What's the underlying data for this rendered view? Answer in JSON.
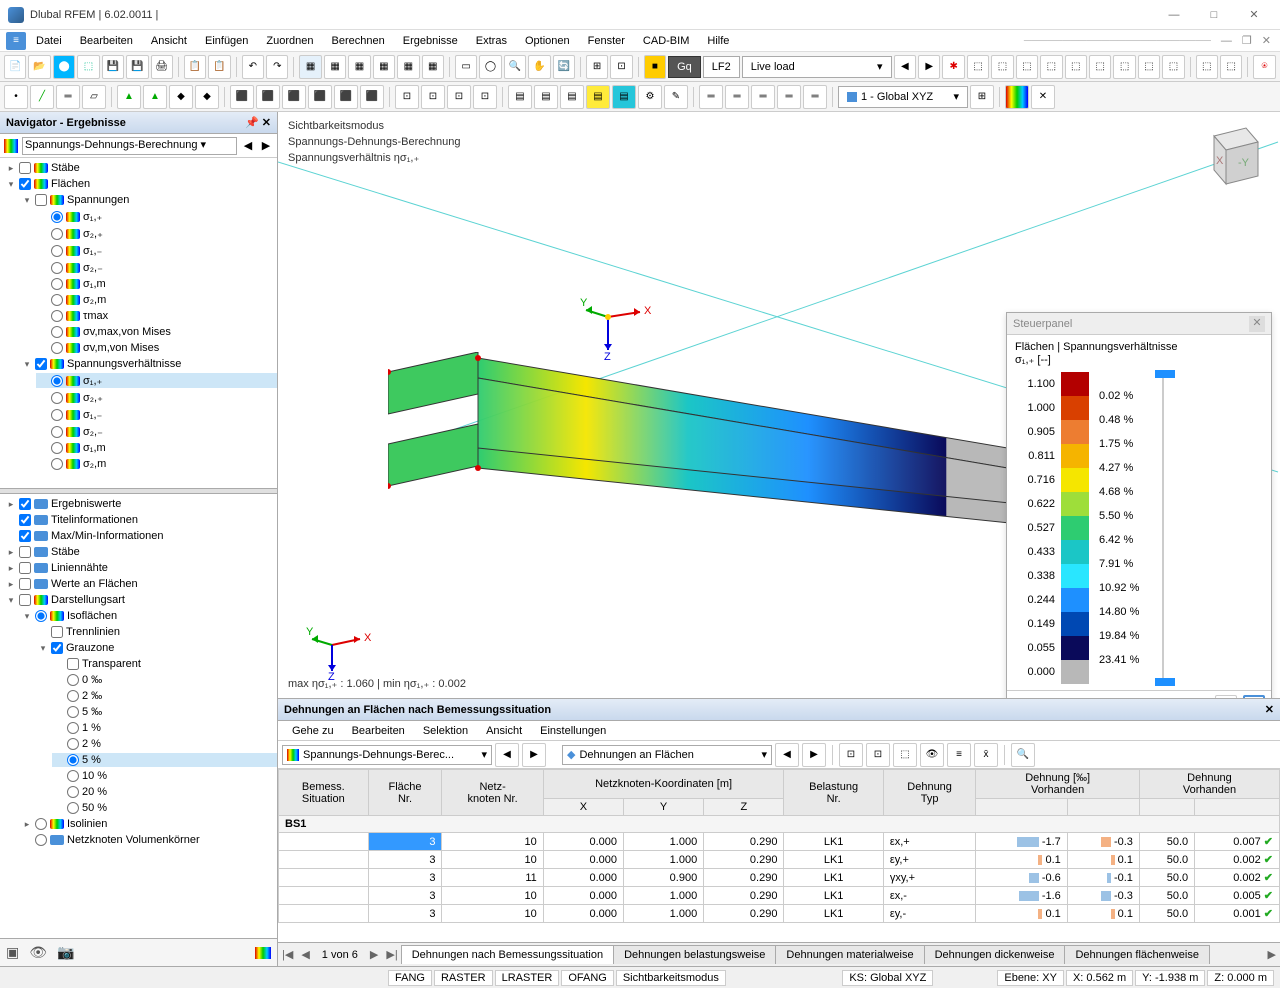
{
  "title": "Dlubal RFEM | 6.02.0011 |",
  "menu": [
    "Datei",
    "Bearbeiten",
    "Ansicht",
    "Einfügen",
    "Zuordnen",
    "Berechnen",
    "Ergebnisse",
    "Extras",
    "Optionen",
    "Fenster",
    "CAD-BIM",
    "Hilfe"
  ],
  "toolbar2_loadcase": {
    "badge": "Gq",
    "code": "LF2",
    "name": "Live load"
  },
  "toolbar2_coord": "1 - Global XYZ",
  "navigator": {
    "title": "Navigator - Ergebnisse",
    "combo": "Spannungs-Dehnungs-Berechnung",
    "tree1": [
      {
        "lvl": 0,
        "exp": ">",
        "chk": false,
        "icon": "grad",
        "label": "Stäbe"
      },
      {
        "lvl": 0,
        "exp": "v",
        "chk": true,
        "icon": "grad",
        "label": "Flächen"
      },
      {
        "lvl": 1,
        "exp": "v",
        "chk": false,
        "icon": "grad",
        "label": "Spannungen"
      },
      {
        "lvl": 2,
        "rad": true,
        "icon": "grad",
        "label": "σ₁,₊"
      },
      {
        "lvl": 2,
        "rad": false,
        "icon": "grad",
        "label": "σ₂,₊"
      },
      {
        "lvl": 2,
        "rad": false,
        "icon": "grad",
        "label": "σ₁,₋"
      },
      {
        "lvl": 2,
        "rad": false,
        "icon": "grad",
        "label": "σ₂,₋"
      },
      {
        "lvl": 2,
        "rad": false,
        "icon": "grad",
        "label": "σ₁,m"
      },
      {
        "lvl": 2,
        "rad": false,
        "icon": "grad",
        "label": "σ₂,m"
      },
      {
        "lvl": 2,
        "rad": false,
        "icon": "grad",
        "label": "τmax"
      },
      {
        "lvl": 2,
        "rad": false,
        "icon": "grad",
        "label": "σv,max,von Mises"
      },
      {
        "lvl": 2,
        "rad": false,
        "icon": "grad",
        "label": "σv,m,von Mises"
      },
      {
        "lvl": 1,
        "exp": "v",
        "chk": true,
        "icon": "grad",
        "label": "Spannungsverhältnisse"
      },
      {
        "lvl": 2,
        "rad": true,
        "sel": true,
        "icon": "grad",
        "label": "σ₁,₊"
      },
      {
        "lvl": 2,
        "rad": false,
        "icon": "grad",
        "label": "σ₂,₊"
      },
      {
        "lvl": 2,
        "rad": false,
        "icon": "grad",
        "label": "σ₁,₋"
      },
      {
        "lvl": 2,
        "rad": false,
        "icon": "grad",
        "label": "σ₂,₋"
      },
      {
        "lvl": 2,
        "rad": false,
        "icon": "grad",
        "label": "σ₁,m"
      },
      {
        "lvl": 2,
        "rad": false,
        "icon": "grad",
        "label": "σ₂,m"
      }
    ],
    "tree2": [
      {
        "lvl": 0,
        "exp": ">",
        "chk": true,
        "icon": "mono",
        "label": "Ergebniswerte"
      },
      {
        "lvl": 0,
        "chk": true,
        "icon": "mono",
        "label": "Titelinformationen"
      },
      {
        "lvl": 0,
        "chk": true,
        "icon": "mono",
        "label": "Max/Min-Informationen"
      },
      {
        "lvl": 0,
        "exp": ">",
        "chk": false,
        "icon": "mono",
        "label": "Stäbe"
      },
      {
        "lvl": 0,
        "exp": ">",
        "chk": false,
        "icon": "mono",
        "label": "Liniennähte"
      },
      {
        "lvl": 0,
        "exp": ">",
        "chk": false,
        "icon": "mono",
        "label": "Werte an Flächen"
      },
      {
        "lvl": 0,
        "exp": "v",
        "chk": false,
        "icon": "grad",
        "label": "Darstellungsart"
      },
      {
        "lvl": 1,
        "exp": "v",
        "rad": true,
        "icon": "grad",
        "label": "Isoflächen"
      },
      {
        "lvl": 2,
        "chk": false,
        "label": "Trennlinien"
      },
      {
        "lvl": 2,
        "exp": "v",
        "chk": true,
        "label": "Grauzone"
      },
      {
        "lvl": 3,
        "chk": false,
        "label": "Transparent"
      },
      {
        "lvl": 3,
        "rad": false,
        "label": "0 ‰"
      },
      {
        "lvl": 3,
        "rad": false,
        "label": "2 ‰"
      },
      {
        "lvl": 3,
        "rad": false,
        "label": "5 ‰"
      },
      {
        "lvl": 3,
        "rad": false,
        "label": "1 %"
      },
      {
        "lvl": 3,
        "rad": false,
        "label": "2 %"
      },
      {
        "lvl": 3,
        "rad": true,
        "sel": true,
        "label": "5 %"
      },
      {
        "lvl": 3,
        "rad": false,
        "label": "10 %"
      },
      {
        "lvl": 3,
        "rad": false,
        "label": "20 %"
      },
      {
        "lvl": 3,
        "rad": false,
        "label": "50 %"
      },
      {
        "lvl": 1,
        "exp": ">",
        "rad": false,
        "icon": "grad",
        "label": "Isolinien"
      },
      {
        "lvl": 1,
        "rad": false,
        "icon": "mono",
        "label": "Netzknoten   Volumenkörner"
      }
    ]
  },
  "view": {
    "labels": [
      "Sichtbarkeitsmodus",
      "Spannungs-Dehnungs-Berechnung",
      "Spannungsverhältnis ησ₁,₊"
    ],
    "maxmin": "max ησ₁,₊ : 1.060 | min ησ₁,₊ : 0.002"
  },
  "panel": {
    "title": "Steuerpanel",
    "subtitle": "Flächen | Spannungsverhältnisse",
    "sub2": "σ₁,₊ [--]",
    "values": [
      "1.100",
      "1.000",
      "0.905",
      "0.811",
      "0.716",
      "0.622",
      "0.527",
      "0.433",
      "0.338",
      "0.244",
      "0.149",
      "0.055",
      "0.000"
    ],
    "colors": [
      "#b30000",
      "#d94000",
      "#ed7d31",
      "#f5b400",
      "#f5e600",
      "#9ede3a",
      "#2ecc71",
      "#1bc6c6",
      "#29e6ff",
      "#1e90ff",
      "#0048b3",
      "#0a0a5a",
      "#b8b8b8"
    ],
    "percents": [
      "0.02 %",
      "0.48 %",
      "1.75 %",
      "4.27 %",
      "4.68 %",
      "5.50 %",
      "6.42 %",
      "7.91 %",
      "10.92 %",
      "14.80 %",
      "19.84 %",
      "23.41 %"
    ]
  },
  "table": {
    "title": "Dehnungen an Flächen nach Bemessungssituation",
    "menu": [
      "Gehe zu",
      "Bearbeiten",
      "Selektion",
      "Ansicht",
      "Einstellungen"
    ],
    "combo1": "Spannungs-Dehnungs-Berec...",
    "combo2": "Dehnungen an Flächen",
    "headers_group": [
      {
        "label": "Bemess.\nSituation",
        "span": 1
      },
      {
        "label": "Fläche\nNr.",
        "span": 1
      },
      {
        "label": "Netz-\nknoten Nr.",
        "span": 1
      },
      {
        "label": "Netzknoten-Koordinaten [m]",
        "span": 3
      },
      {
        "label": "Belastung\nNr.",
        "span": 1
      },
      {
        "label": "Dehnung\nTyp",
        "span": 1
      },
      {
        "label": "Dehnung [‰]\nVorhanden",
        "span": 2
      },
      {
        "label": "Dehnung\nVorhanden",
        "span": 2
      }
    ],
    "headers_sub": [
      "",
      "",
      "",
      "X",
      "Y",
      "Z",
      "",
      "",
      "",
      "",
      "",
      ""
    ],
    "bs": "BS1",
    "rows": [
      {
        "f": 3,
        "n": 10,
        "x": "0.000",
        "y": "1.000",
        "z": "0.290",
        "lk": "LK1",
        "typ": "εx,+",
        "v1": "-1.7",
        "b1": {
          "w": 22,
          "c": "#9cc2e5"
        },
        "v2": "-0.3",
        "b2": {
          "w": 10,
          "c": "#f4b183"
        },
        "v3": "50.0",
        "v4": "0.007",
        "ok": true,
        "sel": true
      },
      {
        "f": 3,
        "n": 10,
        "x": "0.000",
        "y": "1.000",
        "z": "0.290",
        "lk": "LK1",
        "typ": "εy,+",
        "v1": "0.1",
        "b1": {
          "w": 4,
          "c": "#f4b183"
        },
        "v2": "0.1",
        "b2": {
          "w": 4,
          "c": "#f4b183"
        },
        "v3": "50.0",
        "v4": "0.002",
        "ok": true
      },
      {
        "f": 3,
        "n": 11,
        "x": "0.000",
        "y": "0.900",
        "z": "0.290",
        "lk": "LK1",
        "typ": "γxy,+",
        "v1": "-0.6",
        "b1": {
          "w": 10,
          "c": "#9cc2e5"
        },
        "v2": "-0.1",
        "b2": {
          "w": 4,
          "c": "#9cc2e5"
        },
        "v3": "50.0",
        "v4": "0.002",
        "ok": true
      },
      {
        "f": 3,
        "n": 10,
        "x": "0.000",
        "y": "1.000",
        "z": "0.290",
        "lk": "LK1",
        "typ": "εx,-",
        "v1": "-1.6",
        "b1": {
          "w": 20,
          "c": "#9cc2e5"
        },
        "v2": "-0.3",
        "b2": {
          "w": 10,
          "c": "#9cc2e5"
        },
        "v3": "50.0",
        "v4": "0.005",
        "ok": true
      },
      {
        "f": 3,
        "n": 10,
        "x": "0.000",
        "y": "1.000",
        "z": "0.290",
        "lk": "LK1",
        "typ": "εy,-",
        "v1": "0.1",
        "b1": {
          "w": 4,
          "c": "#f4b183"
        },
        "v2": "0.1",
        "b2": {
          "w": 4,
          "c": "#f4b183"
        },
        "v3": "50.0",
        "v4": "0.001",
        "ok": true
      }
    ],
    "tabs": [
      "Dehnungen nach Bemessungssituation",
      "Dehnungen belastungsweise",
      "Dehnungen materialweise",
      "Dehnungen dickenweise",
      "Dehnungen flächenweise"
    ],
    "page": "1 von 6"
  },
  "status": {
    "toggles": [
      "FANG",
      "RASTER",
      "LRASTER",
      "OFANG",
      "Sichtbarkeitsmodus"
    ],
    "ks": "KS: Global XYZ",
    "ebene": "Ebene: XY",
    "x": "X: 0.562 m",
    "y": "Y: -1.938 m",
    "z": "Z: 0.000 m"
  }
}
